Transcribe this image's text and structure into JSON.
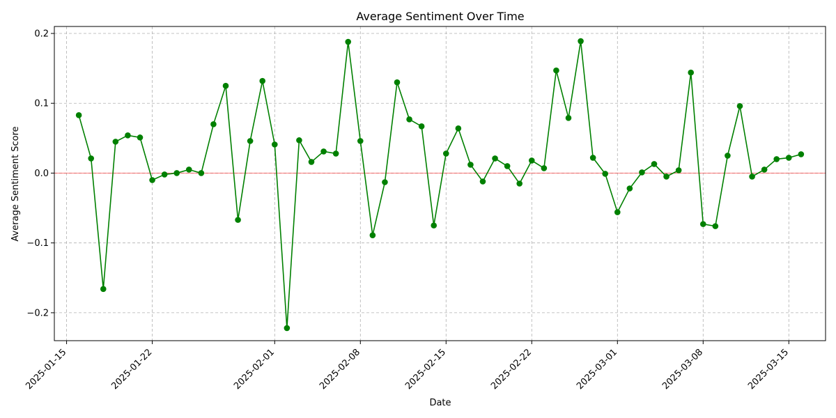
{
  "chart_data": {
    "type": "line",
    "title": "Average Sentiment Over Time",
    "xlabel": "Date",
    "ylabel": "Average Sentiment Score",
    "ylim": [
      -0.24,
      0.21
    ],
    "xlim": [
      "2025-01-14",
      "2025-03-18"
    ],
    "y_ticks": [
      -0.2,
      -0.1,
      0.0,
      0.1,
      0.2
    ],
    "y_tick_labels": [
      "−0.2",
      "−0.1",
      "0.0",
      "0.1",
      "0.2"
    ],
    "x_ticks": [
      "2025-01-15",
      "2025-01-22",
      "2025-02-01",
      "2025-02-08",
      "2025-02-15",
      "2025-02-22",
      "2025-03-01",
      "2025-03-08",
      "2025-03-15"
    ],
    "grid": true,
    "reference_line": {
      "y": 0.0,
      "color": "#ff0000"
    },
    "series": [
      {
        "color": "#008000",
        "marker": "circle",
        "points": [
          [
            "2025-01-16",
            0.083
          ],
          [
            "2025-01-17",
            0.021
          ],
          [
            "2025-01-18",
            -0.166
          ],
          [
            "2025-01-19",
            0.045
          ],
          [
            "2025-01-20",
            0.054
          ],
          [
            "2025-01-21",
            0.051
          ],
          [
            "2025-01-22",
            -0.01
          ],
          [
            "2025-01-23",
            -0.002
          ],
          [
            "2025-01-24",
            0.0
          ],
          [
            "2025-01-25",
            0.005
          ],
          [
            "2025-01-26",
            0.0
          ],
          [
            "2025-01-27",
            0.07
          ],
          [
            "2025-01-28",
            0.125
          ],
          [
            "2025-01-29",
            -0.067
          ],
          [
            "2025-01-30",
            0.046
          ],
          [
            "2025-01-31",
            0.132
          ],
          [
            "2025-02-01",
            0.041
          ],
          [
            "2025-02-02",
            -0.222
          ],
          [
            "2025-02-03",
            0.047
          ],
          [
            "2025-02-04",
            0.016
          ],
          [
            "2025-02-05",
            0.031
          ],
          [
            "2025-02-06",
            0.028
          ],
          [
            "2025-02-07",
            0.188
          ],
          [
            "2025-02-08",
            0.046
          ],
          [
            "2025-02-09",
            -0.089
          ],
          [
            "2025-02-10",
            -0.013
          ],
          [
            "2025-02-11",
            0.13
          ],
          [
            "2025-02-12",
            0.077
          ],
          [
            "2025-02-13",
            0.067
          ],
          [
            "2025-02-14",
            -0.075
          ],
          [
            "2025-02-15",
            0.028
          ],
          [
            "2025-02-16",
            0.064
          ],
          [
            "2025-02-17",
            0.012
          ],
          [
            "2025-02-18",
            -0.012
          ],
          [
            "2025-02-19",
            0.021
          ],
          [
            "2025-02-20",
            0.01
          ],
          [
            "2025-02-21",
            -0.015
          ],
          [
            "2025-02-22",
            0.018
          ],
          [
            "2025-02-23",
            0.007
          ],
          [
            "2025-02-24",
            0.147
          ],
          [
            "2025-02-25",
            0.079
          ],
          [
            "2025-02-26",
            0.189
          ],
          [
            "2025-02-27",
            0.022
          ],
          [
            "2025-02-28",
            -0.001
          ],
          [
            "2025-03-01",
            -0.056
          ],
          [
            "2025-03-02",
            -0.022
          ],
          [
            "2025-03-03",
            0.001
          ],
          [
            "2025-03-04",
            0.013
          ],
          [
            "2025-03-05",
            -0.005
          ],
          [
            "2025-03-06",
            0.004
          ],
          [
            "2025-03-07",
            0.144
          ],
          [
            "2025-03-08",
            -0.073
          ],
          [
            "2025-03-09",
            -0.076
          ],
          [
            "2025-03-10",
            0.025
          ],
          [
            "2025-03-11",
            0.096
          ],
          [
            "2025-03-12",
            -0.005
          ],
          [
            "2025-03-13",
            0.005
          ],
          [
            "2025-03-14",
            0.02
          ],
          [
            "2025-03-15",
            0.022
          ],
          [
            "2025-03-16",
            0.027
          ]
        ]
      }
    ]
  }
}
